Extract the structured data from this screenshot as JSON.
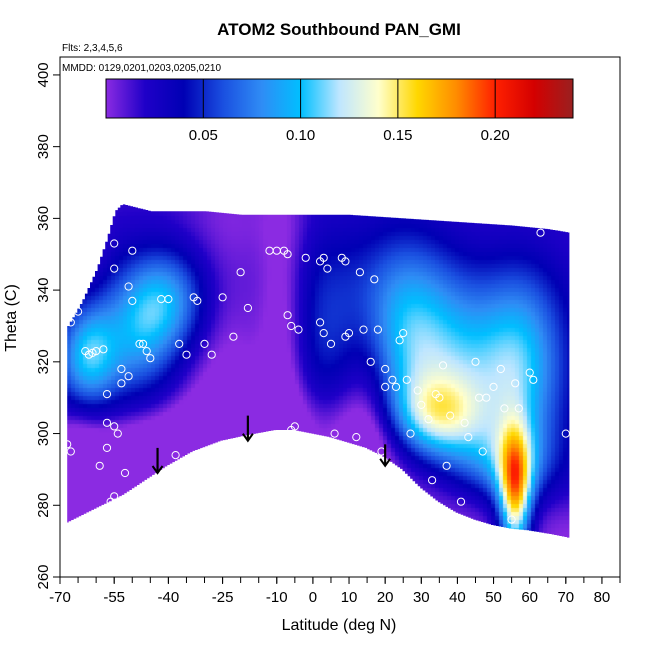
{
  "chart_data": {
    "type": "heatmap",
    "title": "ATOM2 Southbound PAN_GMI",
    "notes": [
      "Flts: 2,3,4,5,6",
      "MMDD: 0129,0201,0203,0205,0210"
    ],
    "xlabel": "Latitude (deg N)",
    "ylabel": "Theta (C)",
    "xlim": [
      -70,
      85
    ],
    "ylim": [
      260,
      405
    ],
    "xticks": [
      -70,
      -55,
      -40,
      -25,
      -10,
      0,
      10,
      20,
      30,
      40,
      50,
      60,
      70,
      80
    ],
    "xtick_labels": [
      "-70",
      "-55",
      "-40",
      "-25",
      "-10",
      "0",
      "10",
      "20",
      "30",
      "40",
      "50",
      "60",
      "70",
      "80"
    ],
    "xminor_step": 5,
    "yticks": [
      260,
      280,
      300,
      320,
      340,
      360,
      380,
      400
    ],
    "ytick_labels": [
      "260",
      "280",
      "300",
      "320",
      "340",
      "360",
      "380",
      "400"
    ],
    "colorbar": {
      "range": [
        0.0,
        0.24
      ],
      "ticks": [
        0.05,
        0.1,
        0.15,
        0.2
      ],
      "tick_labels": [
        "0.05",
        "0.10",
        "0.15",
        "0.20"
      ],
      "colors": [
        "#8b2be2",
        "#1f00c8",
        "#0000b4",
        "#1a4fe0",
        "#2f8cf5",
        "#00bfff",
        "#bfe6ff",
        "#ffffcc",
        "#ffd700",
        "#ff8c00",
        "#ff2000",
        "#d40000",
        "#9a2020"
      ]
    },
    "surface_boundary": [
      [
        -68,
        275
      ],
      [
        -60,
        279
      ],
      [
        -52,
        283
      ],
      [
        -46,
        287
      ],
      [
        -40,
        291
      ],
      [
        -33,
        295
      ],
      [
        -25,
        298
      ],
      [
        -18,
        299.5
      ],
      [
        -10,
        301
      ],
      [
        -5,
        301
      ],
      [
        0,
        300
      ],
      [
        5,
        299
      ],
      [
        10,
        297.5
      ],
      [
        15,
        296
      ],
      [
        20,
        293.5
      ],
      [
        25,
        290
      ],
      [
        30,
        285
      ],
      [
        35,
        281
      ],
      [
        40,
        278
      ],
      [
        45,
        276
      ],
      [
        50,
        274.5
      ],
      [
        55,
        273.5
      ],
      [
        60,
        273
      ],
      [
        66,
        272
      ],
      [
        71,
        271
      ]
    ],
    "top_boundary": [
      [
        -68,
        330
      ],
      [
        -64,
        337
      ],
      [
        -60,
        346
      ],
      [
        -57,
        355
      ],
      [
        -55,
        362
      ],
      [
        -53,
        364
      ],
      [
        -45,
        362
      ],
      [
        -30,
        362
      ],
      [
        -20,
        361
      ],
      [
        -5,
        361
      ],
      [
        10,
        361
      ],
      [
        25,
        360
      ],
      [
        40,
        359
      ],
      [
        55,
        358
      ],
      [
        65,
        357
      ],
      [
        71,
        356
      ]
    ],
    "anomalies": [
      {
        "lat": -62,
        "theta": 322,
        "value": 0.11,
        "sx": 6,
        "sy": 10
      },
      {
        "lat": -40,
        "theta": 337,
        "value": 0.09,
        "sx": 8,
        "sy": 10
      },
      {
        "lat": -48,
        "theta": 328,
        "value": 0.08,
        "sx": 7,
        "sy": 12
      },
      {
        "lat": 26,
        "theta": 330,
        "value": 0.09,
        "sx": 10,
        "sy": 18
      },
      {
        "lat": 35,
        "theta": 305,
        "value": 0.1,
        "sx": 9,
        "sy": 8
      },
      {
        "lat": 42,
        "theta": 318,
        "value": 0.09,
        "sx": 12,
        "sy": 16
      },
      {
        "lat": 58,
        "theta": 320,
        "value": 0.09,
        "sx": 8,
        "sy": 18
      },
      {
        "lat": 52,
        "theta": 292,
        "value": 0.07,
        "sx": 10,
        "sy": 8
      },
      {
        "lat": 56,
        "theta": 282,
        "value": 0.15,
        "sx": 3,
        "sy": 12
      },
      {
        "lat": 56,
        "theta": 290,
        "value": 0.06,
        "sx": 5,
        "sy": 12
      },
      {
        "lat": 0,
        "theta": 330,
        "value": 0.06,
        "sx": 16,
        "sy": 20
      }
    ],
    "low_regions": [
      {
        "lat": -45,
        "theta": 291,
        "depth": 0.05,
        "sx": 22,
        "sy": 10
      },
      {
        "lat": -22,
        "theta": 310,
        "depth": 0.04,
        "sx": 10,
        "sy": 40
      },
      {
        "lat": -8,
        "theta": 330,
        "depth": 0.04,
        "sx": 5,
        "sy": 25
      },
      {
        "lat": 15,
        "theta": 310,
        "depth": 0.04,
        "sx": 6,
        "sy": 20
      },
      {
        "lat": -66,
        "theta": 285,
        "depth": 0.04,
        "sx": 5,
        "sy": 12
      }
    ],
    "arrows": [
      [
        -43,
        296,
        289
      ],
      [
        -18,
        305,
        298
      ],
      [
        20,
        297,
        291
      ]
    ],
    "points": [
      [
        -68,
        297
      ],
      [
        -67,
        295
      ],
      [
        -67,
        331
      ],
      [
        -66,
        336
      ],
      [
        -65,
        334
      ],
      [
        -63,
        323
      ],
      [
        -62,
        322
      ],
      [
        -61,
        322.5
      ],
      [
        -60,
        323
      ],
      [
        -59,
        291
      ],
      [
        -58,
        323.5
      ],
      [
        -57,
        296
      ],
      [
        -57,
        303
      ],
      [
        -57,
        311
      ],
      [
        -56,
        281
      ],
      [
        -55,
        282.5
      ],
      [
        -55,
        302
      ],
      [
        -55,
        353
      ],
      [
        -55,
        346
      ],
      [
        -54,
        300
      ],
      [
        -53,
        314
      ],
      [
        -53,
        318
      ],
      [
        -52,
        289
      ],
      [
        -51,
        316
      ],
      [
        -51,
        341
      ],
      [
        -50,
        351
      ],
      [
        -50,
        337
      ],
      [
        -48,
        325
      ],
      [
        -47,
        325
      ],
      [
        -46,
        323
      ],
      [
        -45,
        321
      ],
      [
        -42,
        337.5
      ],
      [
        -40,
        337.5
      ],
      [
        -38,
        294
      ],
      [
        -37,
        325
      ],
      [
        -35,
        322
      ],
      [
        -33,
        338
      ],
      [
        -32,
        337
      ],
      [
        -30,
        325
      ],
      [
        -30,
        295
      ],
      [
        -28,
        322
      ],
      [
        -25,
        338
      ],
      [
        -22,
        327
      ],
      [
        -20,
        345
      ],
      [
        -18,
        335
      ],
      [
        -17,
        298
      ],
      [
        -13,
        295
      ],
      [
        -12,
        351
      ],
      [
        -10,
        351
      ],
      [
        -8,
        351
      ],
      [
        -7,
        350
      ],
      [
        -7,
        333
      ],
      [
        -6,
        330
      ],
      [
        -6,
        301
      ],
      [
        -5,
        302
      ],
      [
        -4,
        329
      ],
      [
        -2,
        349
      ],
      [
        2,
        348
      ],
      [
        2,
        331
      ],
      [
        3,
        349
      ],
      [
        3,
        328
      ],
      [
        4,
        346
      ],
      [
        5,
        325
      ],
      [
        6,
        300
      ],
      [
        8,
        349
      ],
      [
        9,
        348
      ],
      [
        9,
        327
      ],
      [
        10,
        328
      ],
      [
        12,
        299
      ],
      [
        13,
        345
      ],
      [
        14,
        329
      ],
      [
        16,
        320
      ],
      [
        17,
        343
      ],
      [
        18,
        329
      ],
      [
        19,
        295
      ],
      [
        20,
        313
      ],
      [
        20,
        318
      ],
      [
        22,
        315
      ],
      [
        23,
        313
      ],
      [
        24,
        326
      ],
      [
        25,
        328
      ],
      [
        26,
        315
      ],
      [
        27,
        300
      ],
      [
        29,
        312
      ],
      [
        30,
        308
      ],
      [
        32,
        304
      ],
      [
        33,
        287
      ],
      [
        34,
        311
      ],
      [
        35,
        310
      ],
      [
        36,
        319
      ],
      [
        37,
        291
      ],
      [
        38,
        305
      ],
      [
        41,
        281
      ],
      [
        42,
        303
      ],
      [
        43,
        299
      ],
      [
        45,
        320
      ],
      [
        46,
        310
      ],
      [
        47,
        295
      ],
      [
        48,
        310
      ],
      [
        50,
        313
      ],
      [
        52,
        318
      ],
      [
        53,
        307
      ],
      [
        55,
        276
      ],
      [
        56,
        314
      ],
      [
        57,
        307
      ],
      [
        60,
        317
      ],
      [
        61,
        315
      ],
      [
        63,
        356
      ],
      [
        70,
        300
      ]
    ]
  }
}
